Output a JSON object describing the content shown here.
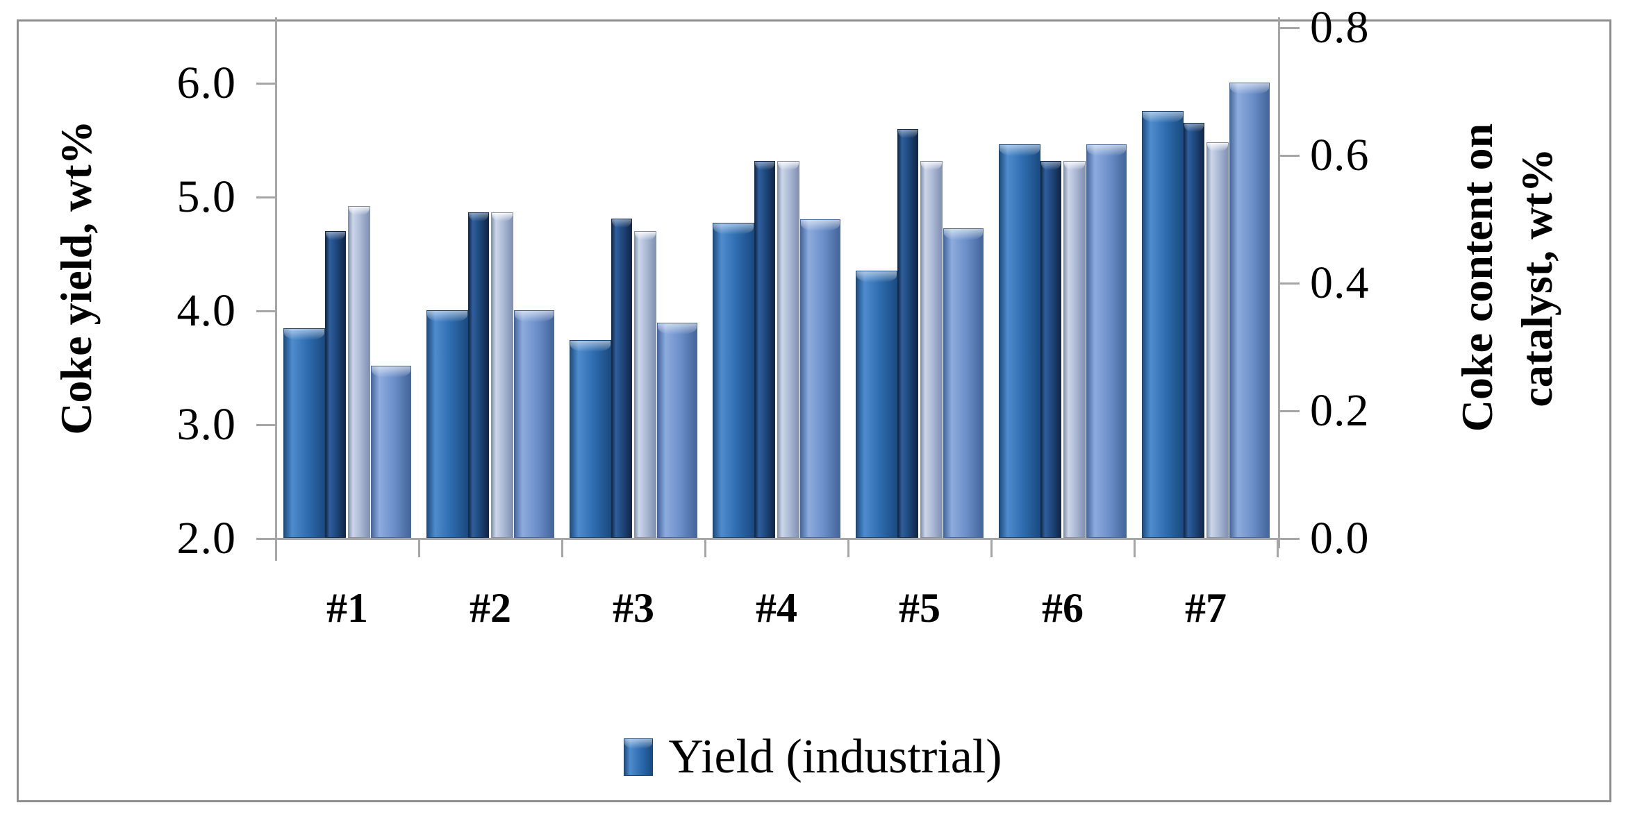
{
  "chart_data": {
    "type": "bar",
    "title": "",
    "categories": [
      "#1",
      "#2",
      "#3",
      "#4",
      "#5",
      "#6",
      "#7"
    ],
    "series": [
      {
        "name": "Yield (industrial)",
        "axis": "left",
        "legend_visible": true,
        "values": [
          3.84,
          4.0,
          3.74,
          4.77,
          4.35,
          5.46,
          5.75
        ],
        "color_light": "#4f8ccd",
        "color_mid": "#2e6cb0",
        "color_dark": "#1c4e84",
        "cap_color": "rgba(255,255,255,0.55)",
        "border_color": "#1a4573"
      },
      {
        "name": "",
        "axis": "right",
        "legend_visible": false,
        "values": [
          0.48,
          0.51,
          0.5,
          0.59,
          0.64,
          0.59,
          0.65
        ],
        "color_light": "#2e5f9e",
        "color_mid": "#1d4577",
        "color_dark": "#12294b",
        "cap_color": "rgba(255,255,255,0.45)",
        "border_color": "#122c4e"
      },
      {
        "name": "",
        "axis": "right",
        "legend_visible": false,
        "values": [
          0.52,
          0.51,
          0.48,
          0.59,
          0.59,
          0.59,
          0.62
        ],
        "color_light": "#cdd6e8",
        "color_mid": "#a9b7d4",
        "color_dark": "#8494b5",
        "cap_color": "rgba(255,255,255,0.85)",
        "border_color": "#8a8f99"
      },
      {
        "name": "",
        "axis": "left",
        "legend_visible": false,
        "values": [
          3.51,
          4.0,
          3.89,
          4.8,
          4.72,
          5.46,
          6.0
        ],
        "color_light": "#8dabdd",
        "color_mid": "#6c8fc9",
        "color_dark": "#47699f",
        "cap_color": "rgba(255,255,255,0.6)",
        "border_color": "#46679c"
      }
    ],
    "left_axis": {
      "label": "Coke yield, wt%",
      "min": 2.0,
      "max": 6.0,
      "tick_step": 1.0,
      "tick_labels": [
        "2.0",
        "3.0",
        "4.0",
        "5.0",
        "6.0"
      ]
    },
    "right_axis": {
      "label": "Coke content on catalyst, wt%",
      "min": 0.0,
      "max": 0.8,
      "tick_step": 0.2,
      "tick_labels": [
        "0.0",
        "0.2",
        "0.4",
        "0.6",
        "0.8"
      ]
    },
    "legend": {
      "position": "bottom",
      "visible_entries": [
        "Yield (industrial)"
      ]
    },
    "grid": false,
    "axis_color": "#a6a6a6",
    "border_color": "#8f8f8f"
  },
  "axes": {
    "left_title": "Coke yield, wt%",
    "right_title_line1": "Coke content on",
    "right_title_line2": "catalyst, wt%"
  },
  "legend": {
    "yield_industrial_label": "Yield (industrial)"
  }
}
